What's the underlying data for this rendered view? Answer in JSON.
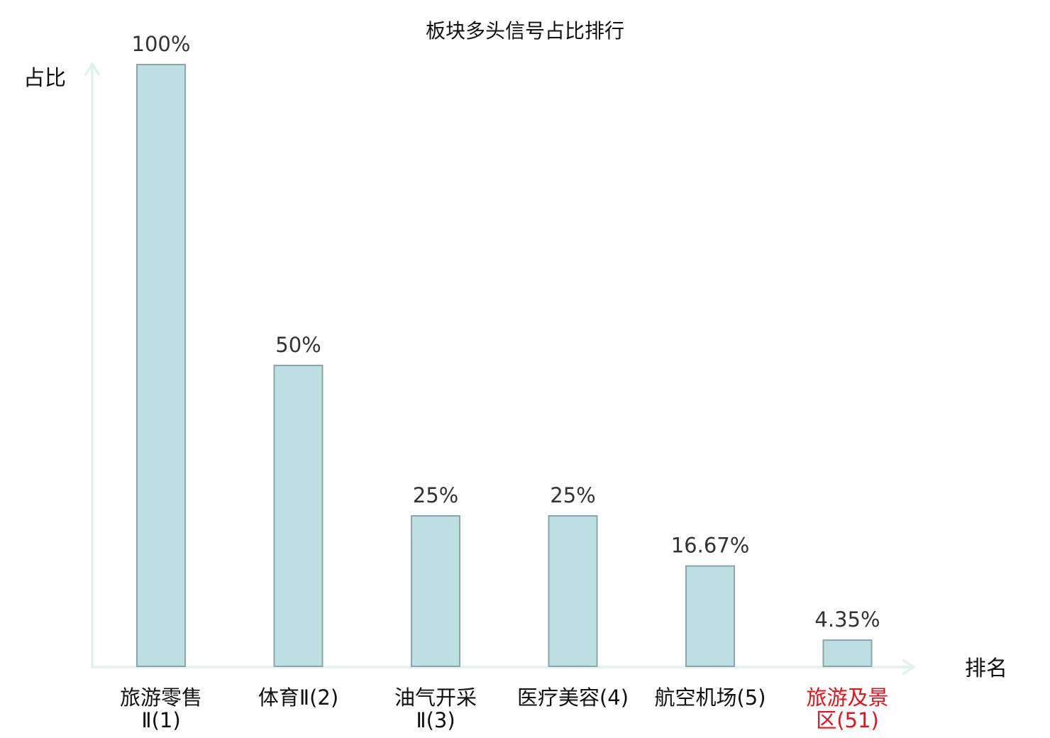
{
  "chart_data": {
    "type": "bar",
    "title": "板块多头信号占比排行",
    "xlabel": "排名",
    "ylabel": "占比",
    "ylim": [
      0,
      100
    ],
    "grid": false,
    "legend": "none",
    "categories": [
      {
        "line1": "旅游零售",
        "line2": "Ⅱ(1)",
        "highlight": false
      },
      {
        "line1": "体育Ⅱ(2)",
        "line2": "",
        "highlight": false
      },
      {
        "line1": "油气开采",
        "line2": "Ⅱ(3)",
        "highlight": false
      },
      {
        "line1": "医疗美容(4)",
        "line2": "",
        "highlight": false
      },
      {
        "line1": "航空机场(5)",
        "line2": "",
        "highlight": false
      },
      {
        "line1": "旅游及景",
        "line2": "区(51)",
        "highlight": true
      }
    ],
    "values": [
      100,
      50,
      25,
      25,
      16.67,
      4.35
    ],
    "value_labels": [
      "100%",
      "50%",
      "25%",
      "25%",
      "16.67%",
      "4.35%"
    ],
    "colors": {
      "bar_fill": "#bde1e3",
      "bar_stroke": "#8aa6aa",
      "axis": "#e0f2ef",
      "highlight_text": "#e8101a",
      "normal_text": "#111111"
    }
  }
}
